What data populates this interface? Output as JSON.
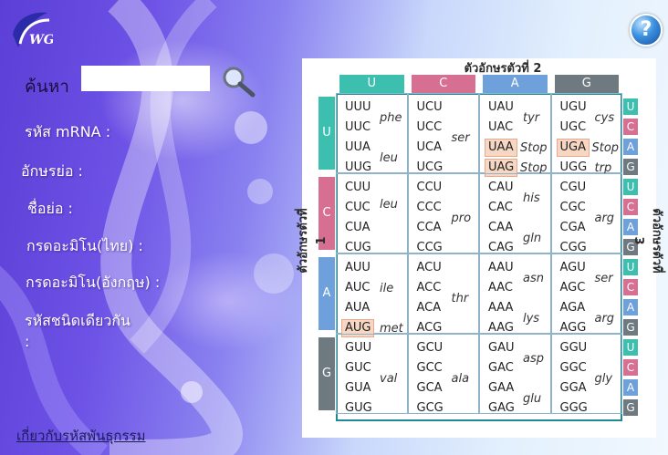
{
  "colors": {
    "U": "#3dbfb0",
    "C": "#d76f93",
    "A": "#6ea0dc",
    "G": "#6f7a80"
  },
  "icons": {
    "logo": "dwg-logo",
    "help": "question-icon",
    "search": "magnifier-icon"
  },
  "search": {
    "label": "ค้นหา",
    "value": ""
  },
  "fields": {
    "mrna": "รหัส mRNA :",
    "short": "อักษรย่อ :",
    "abbr": "ชื่อย่อ :",
    "thai": "กรดอะมิโน(ไทย) :",
    "english": "กรดอะมิโน(อังกฤษ) :",
    "same_line1": "รหัสชนิดเดียวกัน",
    "same_line2": ":"
  },
  "about_link": "เกี่ยวกับรหัสพันธุกรรม",
  "table": {
    "title_top": "ตัวอักษรตัวที่ 2",
    "title_left": "ตัวอักษรตัวที่ 1",
    "title_right": "ตัวอักษรตัวที่ 3",
    "second_letters": [
      "U",
      "C",
      "A",
      "G"
    ],
    "first_letters": [
      "U",
      "C",
      "A",
      "G"
    ],
    "third_letters": [
      "U",
      "C",
      "A",
      "G"
    ],
    "cells": [
      [
        {
          "codons": [
            "UUU",
            "UUC",
            "UUA",
            "UUG"
          ],
          "aa": [
            {
              "t": "phe",
              "p": 0.5
            },
            {
              "t": "leu",
              "p": 2.5
            }
          ],
          "hl": []
        },
        {
          "codons": [
            "UCU",
            "UCC",
            "UCA",
            "UCG"
          ],
          "aa": [
            {
              "t": "ser",
              "p": 1.5
            }
          ],
          "hl": []
        },
        {
          "codons": [
            "UAU",
            "UAC",
            "UAA",
            "UAG"
          ],
          "aa": [
            {
              "t": "tyr",
              "p": 0.5
            },
            {
              "t": "Stop",
              "p": 2
            },
            {
              "t": "Stop",
              "p": 3
            }
          ],
          "hl": [
            2,
            3
          ]
        },
        {
          "codons": [
            "UGU",
            "UGC",
            "UGA",
            "UGG"
          ],
          "aa": [
            {
              "t": "cys",
              "p": 0.5
            },
            {
              "t": "Stop",
              "p": 2
            },
            {
              "t": "trp",
              "p": 3
            }
          ],
          "hl": [
            2
          ]
        }
      ],
      [
        {
          "codons": [
            "CUU",
            "CUC",
            "CUA",
            "CUG"
          ],
          "aa": [
            {
              "t": "leu",
              "p": 0.8
            }
          ],
          "hl": []
        },
        {
          "codons": [
            "CCU",
            "CCC",
            "CCA",
            "CCG"
          ],
          "aa": [
            {
              "t": "pro",
              "p": 1.5
            }
          ],
          "hl": []
        },
        {
          "codons": [
            "CAU",
            "CAC",
            "CAA",
            "CAG"
          ],
          "aa": [
            {
              "t": "his",
              "p": 0.5
            },
            {
              "t": "gln",
              "p": 2.5
            }
          ],
          "hl": []
        },
        {
          "codons": [
            "CGU",
            "CGC",
            "CGA",
            "CGG"
          ],
          "aa": [
            {
              "t": "arg",
              "p": 1.5
            }
          ],
          "hl": []
        }
      ],
      [
        {
          "codons": [
            "AUU",
            "AUC",
            "AUA",
            "AUG"
          ],
          "aa": [
            {
              "t": "ile",
              "p": 1
            },
            {
              "t": "met",
              "p": 3
            }
          ],
          "hl": [
            3
          ]
        },
        {
          "codons": [
            "ACU",
            "ACC",
            "ACA",
            "ACG"
          ],
          "aa": [
            {
              "t": "thr",
              "p": 1.5
            }
          ],
          "hl": []
        },
        {
          "codons": [
            "AAU",
            "AAC",
            "AAA",
            "AAG"
          ],
          "aa": [
            {
              "t": "asn",
              "p": 0.5
            },
            {
              "t": "lys",
              "p": 2.5
            }
          ],
          "hl": []
        },
        {
          "codons": [
            "AGU",
            "AGC",
            "AGA",
            "AGG"
          ],
          "aa": [
            {
              "t": "ser",
              "p": 0.5
            },
            {
              "t": "arg",
              "p": 2.5
            }
          ],
          "hl": []
        }
      ],
      [
        {
          "codons": [
            "GUU",
            "GUC",
            "GUA",
            "GUG"
          ],
          "aa": [
            {
              "t": "val",
              "p": 1.5
            }
          ],
          "hl": []
        },
        {
          "codons": [
            "GCU",
            "GCC",
            "GCA",
            "GCG"
          ],
          "aa": [
            {
              "t": "ala",
              "p": 1.5
            }
          ],
          "hl": []
        },
        {
          "codons": [
            "GAU",
            "GAC",
            "GAA",
            "GAG"
          ],
          "aa": [
            {
              "t": "asp",
              "p": 0.5
            },
            {
              "t": "glu",
              "p": 2.5
            }
          ],
          "hl": []
        },
        {
          "codons": [
            "GGU",
            "GGC",
            "GGA",
            "GGG"
          ],
          "aa": [
            {
              "t": "gly",
              "p": 1.5
            }
          ],
          "hl": []
        }
      ]
    ]
  }
}
